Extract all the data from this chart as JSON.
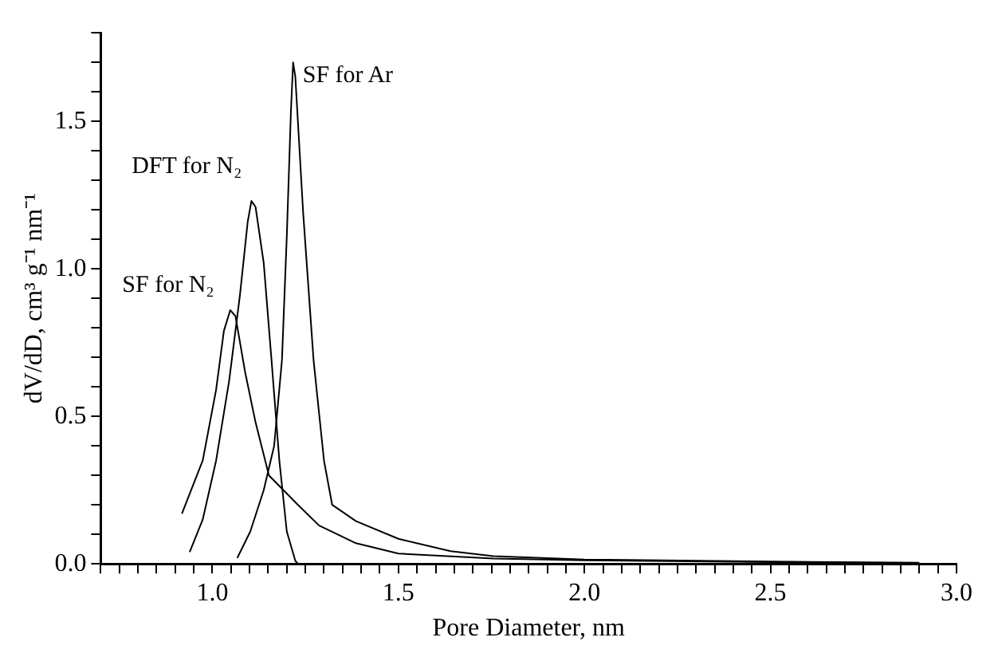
{
  "chart_data": {
    "type": "line",
    "xlabel": "Pore Diameter, nm",
    "ylabel": "dV/dD, cm³ g⁻¹ nm⁻¹",
    "xlim": [
      0.7,
      3.0
    ],
    "ylim": [
      0,
      1.8
    ],
    "xticks": [
      {
        "value": 0.7,
        "label": null
      },
      {
        "value": 0.75,
        "label": null
      },
      {
        "value": 0.8,
        "label": null
      },
      {
        "value": 0.85,
        "label": null
      },
      {
        "value": 0.9,
        "label": null
      },
      {
        "value": 0.95,
        "label": null
      },
      {
        "value": 1.0,
        "label": "1.0"
      },
      {
        "value": 1.05,
        "label": null
      },
      {
        "value": 1.1,
        "label": null
      },
      {
        "value": 1.15,
        "label": null
      },
      {
        "value": 1.2,
        "label": null
      },
      {
        "value": 1.25,
        "label": null
      },
      {
        "value": 1.3,
        "label": null
      },
      {
        "value": 1.35,
        "label": null
      },
      {
        "value": 1.4,
        "label": null
      },
      {
        "value": 1.45,
        "label": null
      },
      {
        "value": 1.5,
        "label": "1.5"
      },
      {
        "value": 1.55,
        "label": null
      },
      {
        "value": 1.6,
        "label": null
      },
      {
        "value": 1.65,
        "label": null
      },
      {
        "value": 1.7,
        "label": null
      },
      {
        "value": 1.75,
        "label": null
      },
      {
        "value": 1.8,
        "label": null
      },
      {
        "value": 1.85,
        "label": null
      },
      {
        "value": 1.9,
        "label": null
      },
      {
        "value": 1.95,
        "label": null
      },
      {
        "value": 2.0,
        "label": "2.0"
      },
      {
        "value": 2.05,
        "label": null
      },
      {
        "value": 2.1,
        "label": null
      },
      {
        "value": 2.15,
        "label": null
      },
      {
        "value": 2.2,
        "label": null
      },
      {
        "value": 2.25,
        "label": null
      },
      {
        "value": 2.3,
        "label": null
      },
      {
        "value": 2.35,
        "label": null
      },
      {
        "value": 2.4,
        "label": null
      },
      {
        "value": 2.45,
        "label": null
      },
      {
        "value": 2.5,
        "label": "2.5"
      },
      {
        "value": 2.55,
        "label": null
      },
      {
        "value": 2.6,
        "label": null
      },
      {
        "value": 2.65,
        "label": null
      },
      {
        "value": 2.7,
        "label": null
      },
      {
        "value": 2.75,
        "label": null
      },
      {
        "value": 2.8,
        "label": null
      },
      {
        "value": 2.85,
        "label": null
      },
      {
        "value": 2.9,
        "label": null
      },
      {
        "value": 2.95,
        "label": null
      },
      {
        "value": 3.0,
        "label": "3.0"
      }
    ],
    "yticks": [
      {
        "value": 0,
        "label": "0.0"
      },
      {
        "value": 0.1,
        "label": null
      },
      {
        "value": 0.2,
        "label": null
      },
      {
        "value": 0.3,
        "label": null
      },
      {
        "value": 0.4,
        "label": null
      },
      {
        "value": 0.5,
        "label": "0.5"
      },
      {
        "value": 0.6,
        "label": null
      },
      {
        "value": 0.7,
        "label": null
      },
      {
        "value": 0.8,
        "label": null
      },
      {
        "value": 0.9,
        "label": null
      },
      {
        "value": 1.0,
        "label": "1.0"
      },
      {
        "value": 1.1,
        "label": null
      },
      {
        "value": 1.2,
        "label": null
      },
      {
        "value": 1.3,
        "label": null
      },
      {
        "value": 1.4,
        "label": null
      },
      {
        "value": 1.5,
        "label": "1.5"
      },
      {
        "value": 1.6,
        "label": null
      },
      {
        "value": 1.7,
        "label": null
      },
      {
        "value": 1.8,
        "label": null
      }
    ],
    "grid": false,
    "legend": false,
    "marker": "none",
    "line_style": "solid",
    "series": [
      {
        "name": "SF for N₂",
        "color": "#000000",
        "x": [
          0.918,
          0.974,
          1.01,
          1.031,
          1.048,
          1.062,
          1.088,
          1.116,
          1.152,
          1.23,
          1.287,
          1.386,
          1.5,
          1.755,
          2.0,
          2.5,
          2.75
        ],
        "values": [
          0.17,
          0.35,
          0.59,
          0.79,
          0.86,
          0.84,
          0.65,
          0.48,
          0.3,
          0.2,
          0.13,
          0.07,
          0.035,
          0.018,
          0.012,
          0.006,
          0.003
        ]
      },
      {
        "name": "DFT for N₂",
        "color": "#000000",
        "x": [
          0.939,
          0.974,
          1.01,
          1.045,
          1.074,
          1.095,
          1.105,
          1.116,
          1.138,
          1.159,
          1.18,
          1.2,
          1.223,
          1.23
        ],
        "values": [
          0.04,
          0.15,
          0.35,
          0.62,
          0.91,
          1.16,
          1.23,
          1.21,
          1.02,
          0.69,
          0.35,
          0.11,
          0.01,
          0
        ]
      },
      {
        "name": "SF for Ar",
        "color": "#000000",
        "x": [
          1.067,
          1.102,
          1.138,
          1.166,
          1.187,
          1.2,
          1.211,
          1.217,
          1.223,
          1.244,
          1.272,
          1.3,
          1.322,
          1.386,
          1.5,
          1.64,
          1.755,
          2.0,
          2.5,
          2.9
        ],
        "values": [
          0.02,
          0.11,
          0.25,
          0.4,
          0.69,
          1.11,
          1.53,
          1.7,
          1.65,
          1.19,
          0.69,
          0.35,
          0.2,
          0.145,
          0.085,
          0.043,
          0.026,
          0.015,
          0.008,
          0.004
        ]
      }
    ]
  }
}
